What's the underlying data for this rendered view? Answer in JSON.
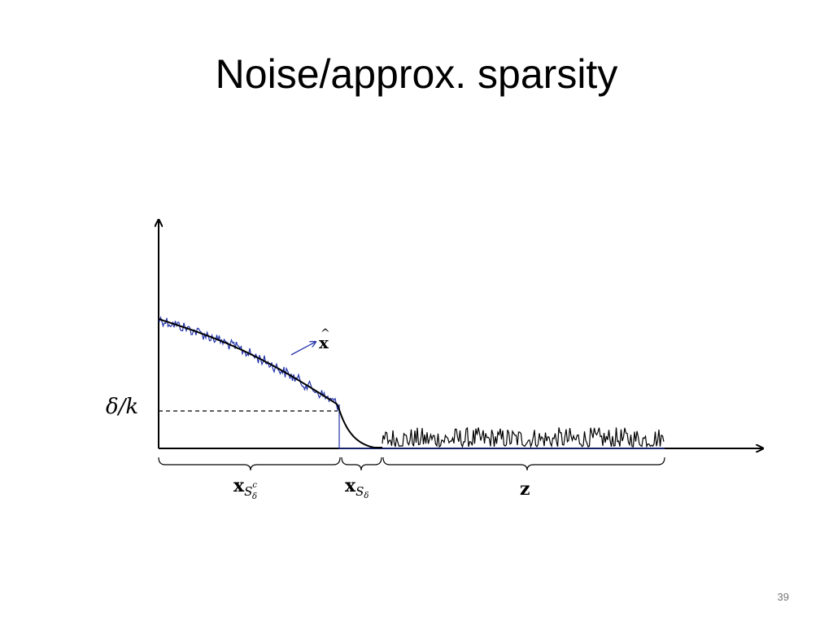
{
  "header": {
    "title": "Noise/approx. sparsity"
  },
  "figure": {
    "threshold_label": "δ/k",
    "estimate_label": {
      "base": "x",
      "accent": "^"
    },
    "segments": [
      {
        "base": "x",
        "sub": "S",
        "subsub": "δ",
        "sup": "c"
      },
      {
        "base": "x",
        "sub": "S",
        "subsub": "δ"
      },
      {
        "base": "z"
      }
    ]
  },
  "footer": {
    "page_number": "39"
  }
}
